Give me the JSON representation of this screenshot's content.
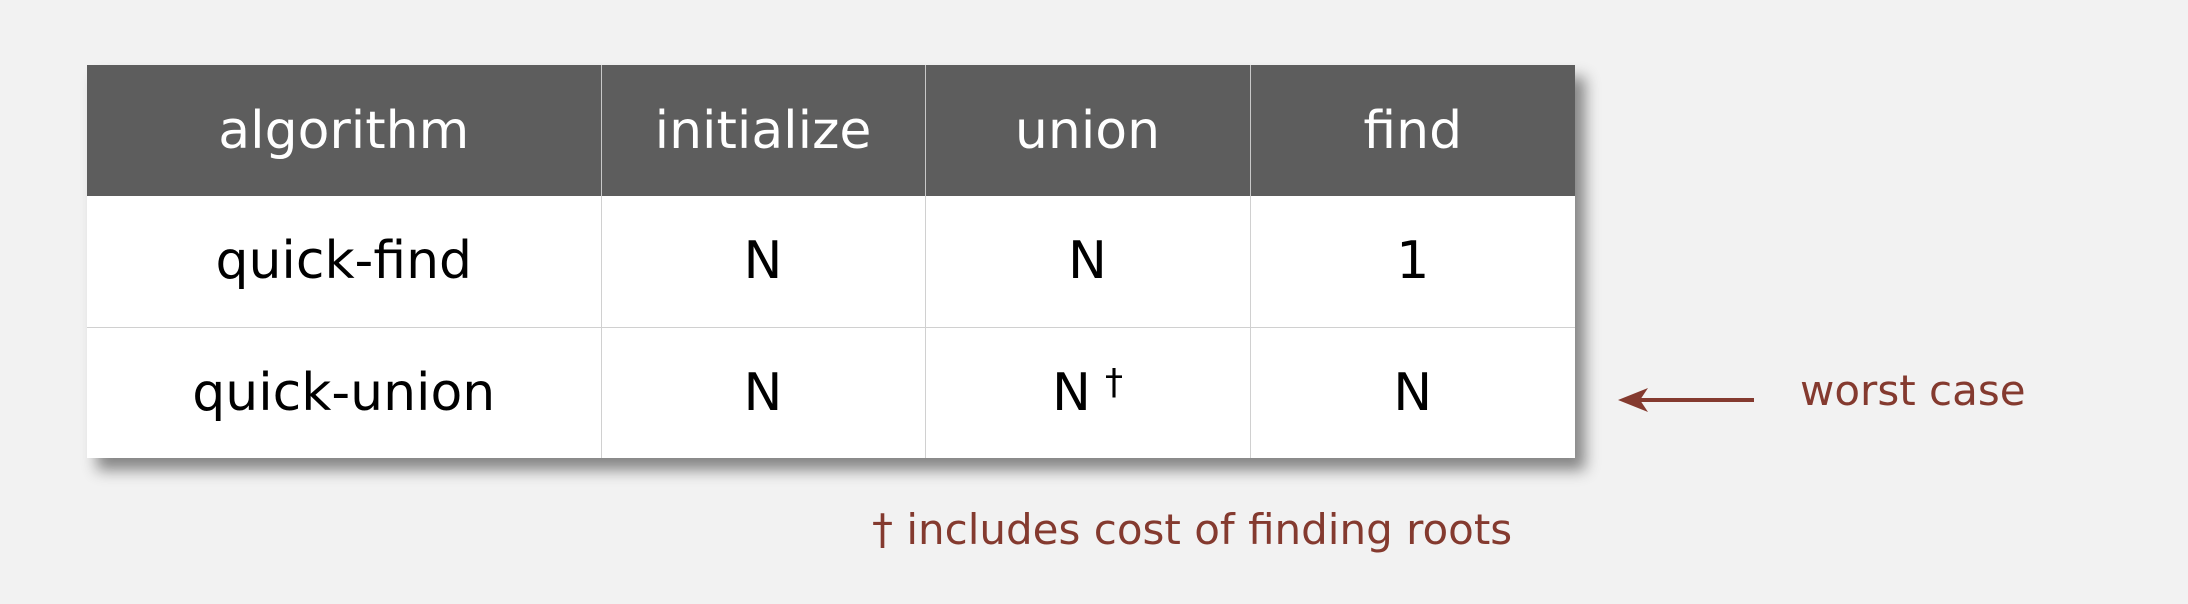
{
  "table": {
    "headers": [
      "algorithm",
      "initialize",
      "union",
      "find"
    ],
    "rows": [
      {
        "algorithm": "quick-find",
        "initialize": "N",
        "union": "N",
        "find": "1"
      },
      {
        "algorithm": "quick-union",
        "initialize": "N",
        "union": "N",
        "union_mark": "†",
        "find": "N"
      }
    ]
  },
  "annotation": {
    "worst_case_label": "worst case",
    "footnote": "† includes cost of finding roots"
  },
  "colors": {
    "header_bg": "#5d5d5d",
    "accent_red": "#843a2f",
    "background": "#f2f2f2"
  }
}
